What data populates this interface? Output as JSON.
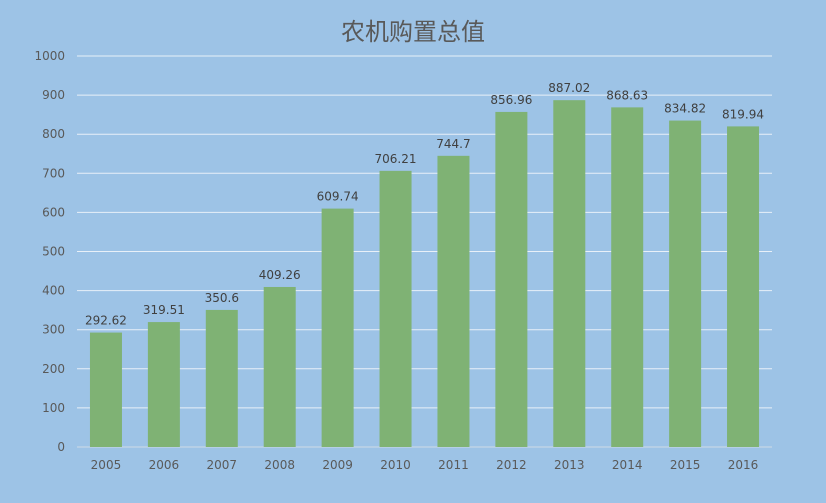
{
  "chart_data": {
    "type": "bar",
    "title": "农机购置总值",
    "categories": [
      "2005",
      "2006",
      "2007",
      "2008",
      "2009",
      "2010",
      "2011",
      "2012",
      "2013",
      "2014",
      "2015",
      "2016"
    ],
    "values": [
      292.62,
      319.51,
      350.6,
      409.26,
      609.74,
      706.21,
      744.7,
      856.96,
      887.02,
      868.63,
      834.82,
      819.94
    ],
    "value_labels": [
      "292.62",
      "319.51",
      "350.6",
      "409.26",
      "609.74",
      "706.21",
      "744.7",
      "856.96",
      "887.02",
      "868.63",
      "834.82",
      "819.94"
    ],
    "ylim": [
      0,
      1000
    ],
    "yticks": [
      "0",
      "100",
      "200",
      "300",
      "400",
      "500",
      "600",
      "700",
      "800",
      "900",
      "1000"
    ],
    "grid": true,
    "legend": "none",
    "colors": {
      "bar": "#7FB274",
      "grid": "#E8F0F8",
      "axis": "#BFD3E6"
    }
  }
}
